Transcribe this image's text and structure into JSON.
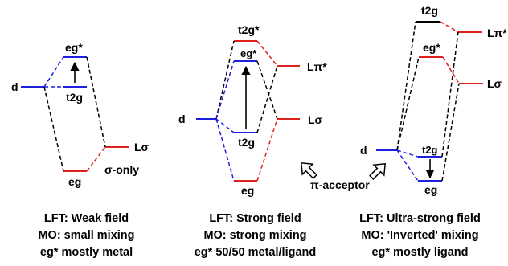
{
  "colors": {
    "blue": "#1f1fe0",
    "red": "#e01f1f",
    "black": "#000000"
  },
  "panel_left": {
    "label_d": "d",
    "label_eg_star": "eg*",
    "label_t2g": "t2g",
    "label_eg": "eg",
    "label_L_sigma": "Lσ",
    "label_sigma_only": "σ-only",
    "caption": [
      "LFT: Weak field",
      "MO: small mixing",
      "eg* mostly metal"
    ]
  },
  "panel_middle": {
    "label_d": "d",
    "label_t2g_star": "t2g*",
    "label_eg_star": "eg*",
    "label_L_pi_star": "Lπ*",
    "label_L_sigma": "Lσ",
    "label_t2g": "t2g",
    "label_eg": "eg",
    "caption": [
      "LFT: Strong field",
      "MO: strong mixing",
      "eg* 50/50 metal/ligand"
    ]
  },
  "panel_right": {
    "label_t2g_top": "t2g",
    "label_eg_star": "eg*",
    "label_L_pi_star": "Lπ*",
    "label_L_sigma": "Lσ",
    "label_d": "d",
    "label_t2g": "t2g",
    "label_eg": "eg",
    "caption": [
      "LFT: Ultra-strong field",
      "MO: 'Inverted' mixing",
      "eg* mostly ligand"
    ]
  },
  "label_pi_acceptor": "π-acceptor"
}
